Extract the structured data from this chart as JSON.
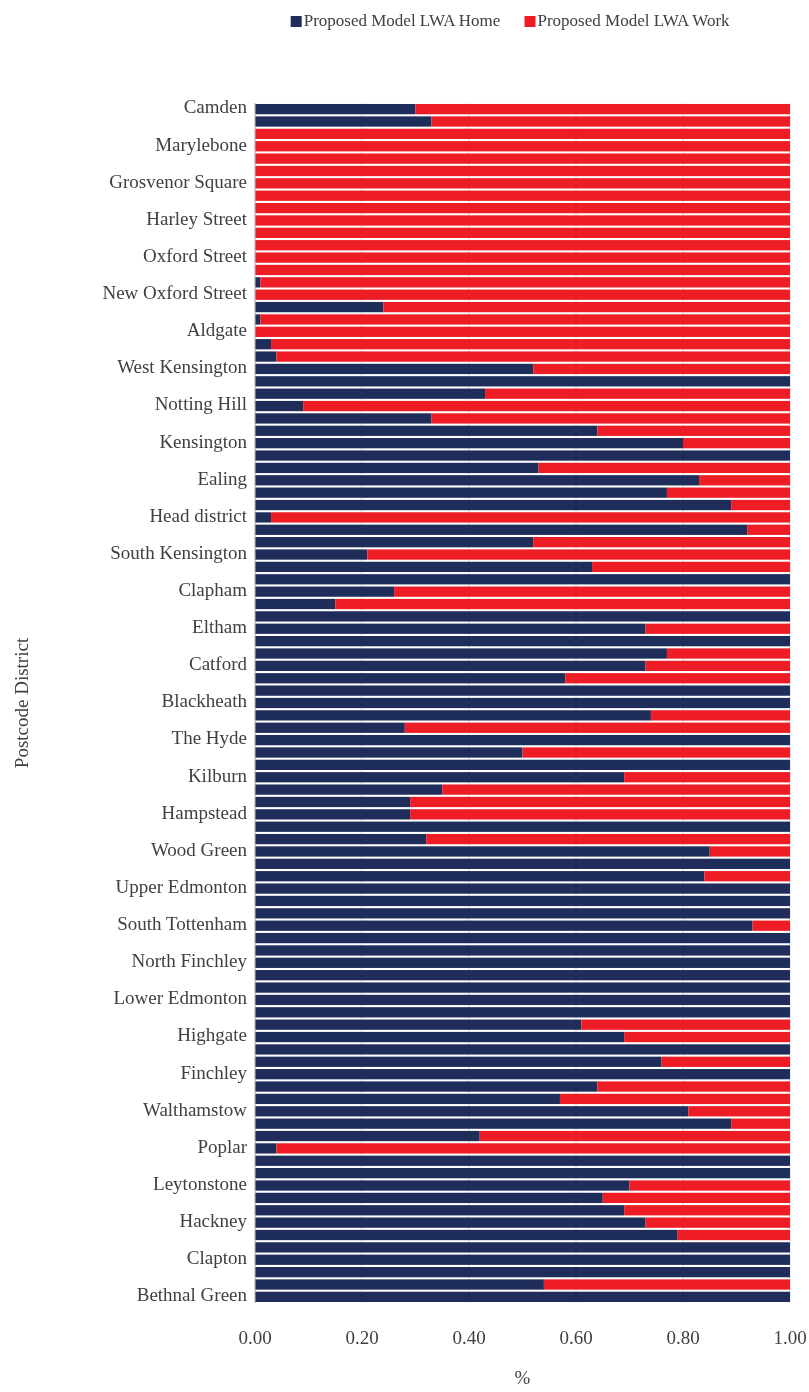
{
  "chart_data": {
    "type": "bar",
    "orientation": "horizontal",
    "stacked": true,
    "xlabel": "%",
    "ylabel": "Postcode District",
    "categories": [
      "Camden",
      null,
      null,
      "Marylebone",
      null,
      null,
      "Grosvenor Square",
      null,
      null,
      "Harley Street",
      null,
      null,
      "Oxford Street",
      null,
      null,
      "New Oxford Street",
      null,
      null,
      "Aldgate",
      null,
      null,
      "West Kensington",
      null,
      null,
      "Notting Hill",
      null,
      null,
      "Kensington",
      null,
      null,
      "Ealing",
      null,
      null,
      "Head district",
      null,
      null,
      "South Kensington",
      null,
      null,
      "Clapham",
      null,
      null,
      "Eltham",
      null,
      null,
      "Catford",
      null,
      null,
      "Blackheath",
      null,
      null,
      "The Hyde",
      null,
      null,
      "Kilburn",
      null,
      null,
      "Hampstead",
      null,
      null,
      "Wood Green",
      null,
      null,
      "Upper Edmonton",
      null,
      null,
      "South Tottenham",
      null,
      null,
      "North Finchley",
      null,
      null,
      "Lower Edmonton",
      null,
      null,
      "Highgate",
      null,
      null,
      "Finchley",
      null,
      null,
      "Walthamstow",
      null,
      null,
      "Poplar",
      null,
      null,
      "Leytonstone",
      null,
      null,
      "Hackney",
      null,
      null,
      "Clapton",
      null,
      null,
      "Bethnal Green"
    ],
    "series": [
      {
        "name": "Proposed Model LWA Home",
        "color": "#1f2d5a",
        "values": [
          0.3,
          0.33,
          0,
          0,
          0,
          0,
          0,
          0,
          0,
          0,
          0,
          0,
          0,
          0,
          0.01,
          0,
          0.24,
          0.01,
          0,
          0.03,
          0.04,
          0.52,
          1,
          0.43,
          0.09,
          0.33,
          0.64,
          0.8,
          1,
          0.53,
          0.83,
          0.77,
          0.89,
          0.03,
          0.92,
          0.52,
          0.21,
          0.63,
          1,
          0.26,
          0.15,
          1,
          0.73,
          1,
          0.77,
          0.73,
          0.58,
          1,
          1,
          0.74,
          0.28,
          1,
          0.5,
          1,
          0.69,
          0.35,
          0.29,
          0.29,
          1,
          0.32,
          0.85,
          1,
          0.84,
          1,
          1,
          1,
          0.93,
          1,
          1,
          1,
          1,
          1,
          1,
          1,
          0.61,
          0.69,
          1,
          0.76,
          1,
          0.64,
          0.57,
          0.81,
          0.89,
          0.42,
          0.04,
          1,
          1,
          0.7,
          0.65,
          0.69,
          0.73,
          0.79,
          1,
          1,
          1,
          0.54,
          1
        ]
      },
      {
        "name": "Proposed Model LWA Work",
        "color": "#ee1c24",
        "values": [
          0.7,
          0.67,
          1,
          1,
          1,
          1,
          1,
          1,
          1,
          1,
          1,
          1,
          1,
          1,
          0.99,
          1,
          0.76,
          0.99,
          1,
          0.97,
          0.96,
          0.48,
          0,
          0.57,
          0.91,
          0.67,
          0.36,
          0.2,
          0,
          0.47,
          0.17,
          0.23,
          0.11,
          0.97,
          0.08,
          0.48,
          0.79,
          0.37,
          0,
          0.74,
          0.85,
          0,
          0.27,
          0,
          0.23,
          0.27,
          0.42,
          0,
          0,
          0.26,
          0.72,
          0,
          0.5,
          0,
          0.31,
          0.65,
          0.71,
          0.71,
          0,
          0.68,
          0.15,
          0,
          0.16,
          0,
          0,
          0,
          0.07,
          0,
          0,
          0,
          0,
          0,
          0,
          0,
          0.39,
          0.31,
          0,
          0.24,
          0,
          0.36,
          0.43,
          0.19,
          0.11,
          0.58,
          0.96,
          0,
          0,
          0.3,
          0.35,
          0.31,
          0.27,
          0.21,
          0,
          0,
          0,
          0.46,
          0
        ]
      }
    ],
    "xlim": [
      0,
      1
    ],
    "xticks": [
      {
        "value": 0,
        "label": "0.00"
      },
      {
        "value": 0.2,
        "label": "0.20"
      },
      {
        "value": 0.4,
        "label": "0.40"
      },
      {
        "value": 0.6,
        "label": "0.60"
      },
      {
        "value": 0.8,
        "label": "0.80"
      },
      {
        "value": 1,
        "label": "1.00"
      }
    ],
    "grid": "x",
    "legend": "top"
  }
}
